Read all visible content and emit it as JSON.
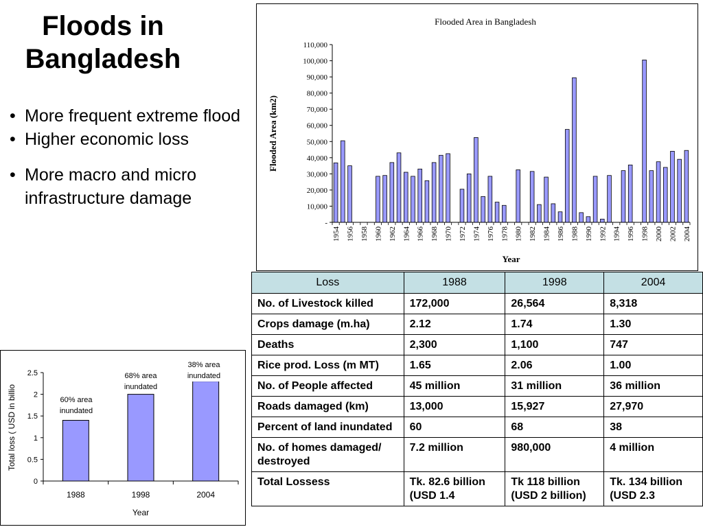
{
  "slide": {
    "title_line1": "Floods in",
    "title_line2": "Bangladesh",
    "bullets": [
      "More frequent extreme flood",
      "Higher economic loss",
      "More macro and micro infrastructure damage"
    ]
  },
  "chart_data": [
    {
      "type": "bar",
      "title": "Flooded Area in Bangladesh",
      "xlabel": "Year",
      "ylabel": "Flooded Area (km2)",
      "ylim": [
        0,
        110000
      ],
      "yticks": [
        "-",
        "10,000",
        "20,000",
        "30,000",
        "40,000",
        "50,000",
        "60,000",
        "70,000",
        "80,000",
        "90,000",
        "100,000",
        "110,000"
      ],
      "xticks": [
        "1954",
        "1956",
        "1958",
        "1960",
        "1962",
        "1964",
        "1966",
        "1968",
        "1970",
        "1972",
        "1974",
        "1976",
        "1978",
        "1980",
        "1982",
        "1984",
        "1986",
        "1988",
        "1990",
        "1992",
        "1994",
        "1996",
        "1998",
        "2000",
        "2002",
        "2004"
      ],
      "categories": [
        1954,
        1955,
        1956,
        1957,
        1958,
        1959,
        1960,
        1961,
        1962,
        1963,
        1964,
        1965,
        1966,
        1967,
        1968,
        1969,
        1970,
        1971,
        1972,
        1973,
        1974,
        1975,
        1976,
        1977,
        1978,
        1979,
        1980,
        1981,
        1982,
        1983,
        1984,
        1985,
        1986,
        1987,
        1988,
        1989,
        1990,
        1991,
        1992,
        1993,
        1994,
        1995,
        1996,
        1997,
        1998,
        1999,
        2000,
        2001,
        2002,
        2003,
        2004
      ],
      "values": [
        36800,
        50500,
        35000,
        0,
        0,
        0,
        28500,
        29000,
        37000,
        43000,
        31000,
        28500,
        33000,
        25800,
        37000,
        41500,
        42500,
        0,
        20500,
        30000,
        52500,
        16000,
        28500,
        12500,
        10500,
        0,
        32500,
        0,
        31500,
        11000,
        28000,
        11500,
        6500,
        57500,
        89500,
        6000,
        3500,
        28500,
        2000,
        29000,
        0,
        32000,
        35500,
        0,
        100500,
        32000,
        37500,
        34000,
        44000,
        39000,
        44500
      ],
      "bar_color": "#9999ff",
      "grid": false,
      "legend": "none"
    },
    {
      "type": "bar",
      "xlabel": "Year",
      "ylabel": "Total loss ( USD in billio",
      "ylim": [
        0,
        2.5
      ],
      "yticks": [
        "0",
        "0.5",
        "1",
        "1.5",
        "2",
        "2.5"
      ],
      "categories": [
        "1988",
        "1998",
        "2004"
      ],
      "values": [
        1.4,
        2.0,
        2.3
      ],
      "annotations": [
        {
          "line1": "60% area",
          "line2": "inundated"
        },
        {
          "line1": "68% area",
          "line2": "inundated"
        },
        {
          "line1": "38% area",
          "line2": "inundated"
        }
      ],
      "bar_color": "#9999ff",
      "grid": false,
      "legend": "none"
    }
  ],
  "table": {
    "headers": [
      "Loss",
      "1988",
      "1998",
      "2004"
    ],
    "rows": [
      {
        "label": "No. of Livestock killed",
        "v1988": "172,000",
        "v1998": "26,564",
        "v2004": "8,318"
      },
      {
        "label": "Crops damage (m.ha)",
        "v1988": "2.12",
        "v1998": "1.74",
        "v2004": "1.30"
      },
      {
        "label": "Deaths",
        "v1988": "2,300",
        "v1998": "1,100",
        "v2004": "747"
      },
      {
        "label": "Rice prod. Loss (m MT)",
        "v1988": "1.65",
        "v1998": "2.06",
        "v2004": "1.00"
      },
      {
        "label": "No. of People affected",
        "v1988": "45 million",
        "v1998": "31 million",
        "v2004": "36 million"
      },
      {
        "label": "Roads damaged (km)",
        "v1988": "13,000",
        "v1998": "15,927",
        "v2004": "27,970"
      },
      {
        "label": "Percent of land inundated",
        "v1988": "60",
        "v1998": "68",
        "v2004": "38"
      },
      {
        "label": "No. of homes damaged/ destroyed",
        "v1988": "7.2 million",
        "v1998": "980,000",
        "v2004": "4 million"
      },
      {
        "label": "Total Lossess",
        "v1988": "Tk. 82.6 billion (USD 1.4",
        "v1998": "Tk 118 billion (USD 2 billion)",
        "v2004": "Tk. 134 billion (USD 2.3"
      }
    ]
  }
}
